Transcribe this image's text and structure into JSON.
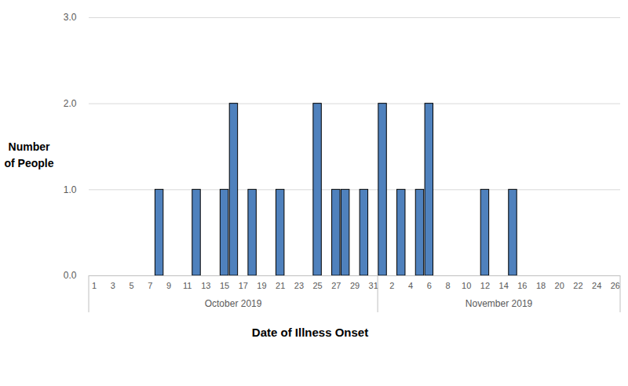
{
  "chart_data": {
    "type": "bar",
    "x_label": "Date of Illness Onset",
    "y_label": "Number of People",
    "categories": [
      "1",
      null,
      "3",
      null,
      "5",
      null,
      "7",
      null,
      "9",
      null,
      "11",
      null,
      "13",
      null,
      "15",
      null,
      "17",
      null,
      "19",
      null,
      "21",
      null,
      "23",
      null,
      "25",
      null,
      "27",
      null,
      "29",
      null,
      "31",
      null,
      "2",
      null,
      "4",
      null,
      "6",
      null,
      "8",
      null,
      "10",
      null,
      "12",
      null,
      "14",
      null,
      "16",
      null,
      "18",
      null,
      "20",
      null,
      "22",
      null,
      "24",
      null,
      "26"
    ],
    "values": [
      0,
      0,
      0,
      0,
      0,
      0,
      0,
      1,
      0,
      0,
      0,
      1,
      0,
      0,
      1,
      2,
      0,
      1,
      0,
      0,
      1,
      0,
      0,
      0,
      2,
      0,
      1,
      1,
      0,
      1,
      0,
      2,
      0,
      1,
      0,
      1,
      2,
      0,
      0,
      0,
      0,
      0,
      1,
      0,
      0,
      1,
      0,
      0,
      0,
      0,
      0,
      0,
      0,
      0,
      0,
      0,
      0
    ],
    "x_groups": [
      {
        "label": "October 2019",
        "size": 31
      },
      {
        "label": "November 2019",
        "size": 26
      }
    ],
    "color": "#4f81bd",
    "ylim": [
      0,
      3
    ],
    "yticks": [
      0,
      1,
      2,
      3
    ],
    "grid": true
  }
}
